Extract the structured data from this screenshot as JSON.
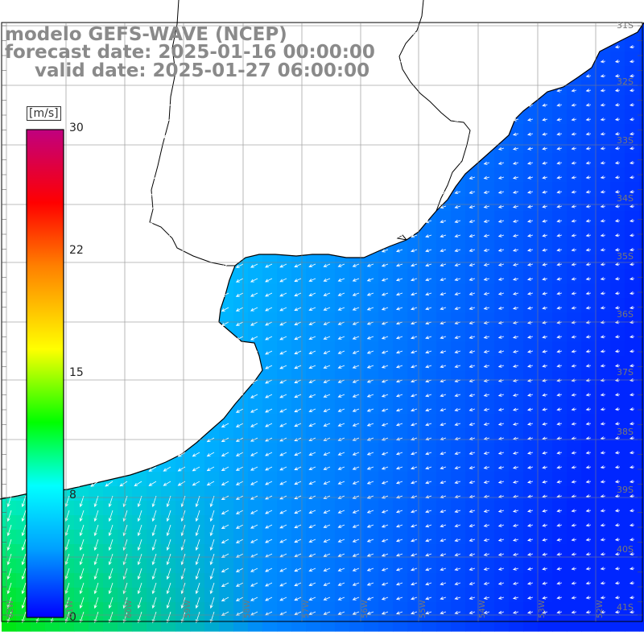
{
  "title": {
    "line1": "modelo GEFS-WAVE (NCEP)",
    "line2": "forecast date: 2025-01-16 00:00:00",
    "line3": "valid date: 2025-01-27 06:00:00"
  },
  "colorbar": {
    "unit": "[m/s]",
    "min": 0,
    "max": 30,
    "ticks": [
      "30",
      "22",
      "15",
      "8",
      "0"
    ],
    "tick_values": [
      30,
      22,
      15,
      8,
      0
    ],
    "colors": [
      "#0000ff",
      "#00a0ff",
      "#00ffff",
      "#00ff00",
      "#ffff00",
      "#ff8000",
      "#ff0000",
      "#c00080"
    ]
  },
  "map": {
    "lat_labels": [
      "31S",
      "32S",
      "33S",
      "34S",
      "35S",
      "36S",
      "37S",
      "38S",
      "39S",
      "40S",
      "41S"
    ],
    "lon_labels": [
      "62W",
      "61W",
      "60W",
      "59W",
      "58W",
      "57W",
      "56W",
      "55W",
      "54W",
      "53W",
      "52W",
      "51W"
    ],
    "land_color": "#ffffff",
    "coast_color": "#000000",
    "grid_color": "#808080"
  }
}
